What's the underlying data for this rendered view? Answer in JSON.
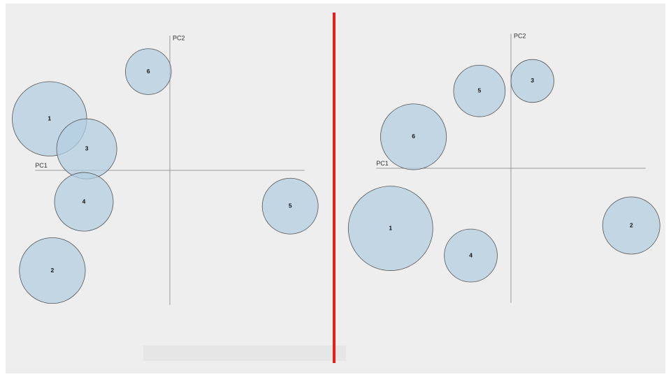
{
  "colors": {
    "bubble_fill": "#b3cde0",
    "divider": "#ee1c16"
  },
  "chart_data": [
    {
      "type": "scatter",
      "xlabel": "PC1",
      "ylabel": "PC2",
      "xlim": [
        -4.7,
        4.7
      ],
      "ylim": [
        -4.7,
        4.7
      ],
      "grid": false,
      "points": [
        {
          "label": "1",
          "x": -4.2,
          "y": 1.8,
          "size": 2.6
        },
        {
          "label": "2",
          "x": -4.1,
          "y": -3.5,
          "size": 2.3
        },
        {
          "label": "3",
          "x": -2.9,
          "y": 0.75,
          "size": 2.1
        },
        {
          "label": "4",
          "x": -3.0,
          "y": -1.1,
          "size": 2.05
        },
        {
          "label": "5",
          "x": 4.2,
          "y": -1.25,
          "size": 1.95
        },
        {
          "label": "6",
          "x": -0.75,
          "y": 3.45,
          "size": 1.6
        }
      ]
    },
    {
      "type": "scatter",
      "xlabel": "PC1",
      "ylabel": "PC2",
      "xlim": [
        -4.7,
        4.7
      ],
      "ylim": [
        -4.7,
        4.7
      ],
      "grid": false,
      "points": [
        {
          "label": "1",
          "x": -4.2,
          "y": -2.1,
          "size": 2.95
        },
        {
          "label": "2",
          "x": 4.2,
          "y": -2.0,
          "size": 2.0
        },
        {
          "label": "3",
          "x": 0.75,
          "y": 3.05,
          "size": 1.5
        },
        {
          "label": "4",
          "x": -1.4,
          "y": -3.05,
          "size": 1.85
        },
        {
          "label": "5",
          "x": -1.1,
          "y": 2.7,
          "size": 1.8
        },
        {
          "label": "6",
          "x": -3.4,
          "y": 1.1,
          "size": 2.3
        }
      ]
    }
  ]
}
